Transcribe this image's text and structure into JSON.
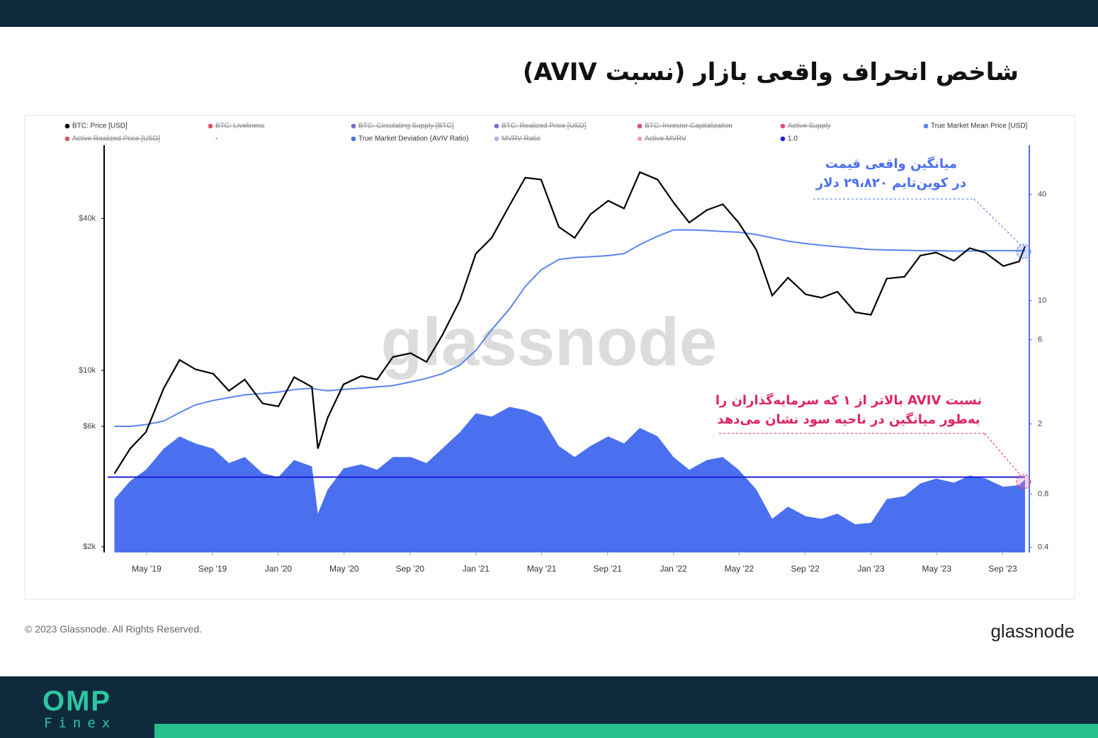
{
  "title": "شاخص انحراف واقعی بازار (نسبت AVIV)",
  "footer": {
    "copyright": "© 2023 Glassnode. All Rights Reserved.",
    "logo": "glassnode"
  },
  "brand": {
    "name": "OMP",
    "sub": "Finex"
  },
  "chart_data": {
    "type": "line",
    "watermark": "glassnode",
    "legend": [
      {
        "name": "BTC: Price [USD]",
        "color": "#000000",
        "struck": false
      },
      {
        "name": "BTC: Liveliness",
        "color": "#e0506a",
        "struck": true
      },
      {
        "name": "BTC: Circulating Supply [BTC]",
        "color": "#7b68d8",
        "struck": true
      },
      {
        "name": "BTC: Realized Price [USD]",
        "color": "#7b68d8",
        "struck": true
      },
      {
        "name": "BTC: Investor Capitalization",
        "color": "#e0506a",
        "struck": true
      },
      {
        "name": "Active Supply",
        "color": "#e0506a",
        "struck": true
      },
      {
        "name": "True Market Mean Price [USD]",
        "color": "#5b84f0",
        "struck": false
      },
      {
        "name": "Active Realized Price [USD]",
        "color": "#e0506a",
        "struck": true
      },
      {
        "name": "-",
        "struck": false
      },
      {
        "name": "True Market Deviation (AVIV Ratio)",
        "color": "#4a70f0",
        "struck": false
      },
      {
        "name": "MVRV Ratio",
        "color": "#b9b0ee",
        "struck": true
      },
      {
        "name": "Active MVRV",
        "color": "#f0a0b8",
        "struck": true
      },
      {
        "name": "1.0",
        "color": "#1f1fd6",
        "struck": false
      }
    ],
    "x": [
      2019.17,
      2019.25,
      2019.33,
      2019.42,
      2019.5,
      2019.58,
      2019.67,
      2019.75,
      2019.83,
      2019.92,
      2020.0,
      2020.08,
      2020.17,
      2020.2,
      2020.25,
      2020.33,
      2020.42,
      2020.5,
      2020.58,
      2020.67,
      2020.75,
      2020.83,
      2020.92,
      2021.0,
      2021.08,
      2021.17,
      2021.25,
      2021.33,
      2021.42,
      2021.5,
      2021.58,
      2021.67,
      2021.75,
      2021.83,
      2021.92,
      2022.0,
      2022.08,
      2022.17,
      2022.25,
      2022.33,
      2022.42,
      2022.5,
      2022.58,
      2022.67,
      2022.75,
      2022.83,
      2022.92,
      2023.0,
      2023.08,
      2023.17,
      2023.25,
      2023.33,
      2023.42,
      2023.5,
      2023.58,
      2023.67,
      2023.75,
      2023.78
    ],
    "series": [
      {
        "type": "area",
        "axis": "y2",
        "color": "#4a70f0",
        "values": [
          0.75,
          0.95,
          1.1,
          1.45,
          1.7,
          1.55,
          1.45,
          1.2,
          1.3,
          1.05,
          1.0,
          1.25,
          1.15,
          0.62,
          0.85,
          1.12,
          1.18,
          1.1,
          1.3,
          1.3,
          1.2,
          1.45,
          1.8,
          2.3,
          2.2,
          2.5,
          2.4,
          2.2,
          1.5,
          1.3,
          1.5,
          1.7,
          1.55,
          1.9,
          1.7,
          1.3,
          1.1,
          1.25,
          1.3,
          1.1,
          0.85,
          0.58,
          0.68,
          0.6,
          0.58,
          0.62,
          0.54,
          0.55,
          0.75,
          0.78,
          0.92,
          0.98,
          0.93,
          1.02,
          0.98,
          0.88,
          0.9,
          0.97
        ]
      },
      {
        "type": "line",
        "axis": "y",
        "color": "#5b84f0",
        "values": [
          6000,
          6000,
          6100,
          6300,
          6800,
          7300,
          7600,
          7800,
          8000,
          8100,
          8200,
          8400,
          8500,
          8400,
          8300,
          8400,
          8500,
          8600,
          8700,
          9000,
          9300,
          9700,
          10500,
          12000,
          14500,
          17500,
          21500,
          25000,
          27500,
          28000,
          28200,
          28500,
          29000,
          31500,
          34000,
          36000,
          36000,
          35800,
          35500,
          35300,
          34500,
          33500,
          32500,
          31800,
          31300,
          30900,
          30500,
          30100,
          30000,
          29900,
          29800,
          29800,
          29700,
          29700,
          29800,
          29800,
          29800,
          29820
        ]
      },
      {
        "type": "line",
        "axis": "y",
        "color": "#000000",
        "values": [
          3900,
          4900,
          5700,
          8500,
          11000,
          10100,
          9700,
          8300,
          9200,
          7400,
          7200,
          9400,
          8600,
          4900,
          6500,
          8800,
          9500,
          9200,
          11300,
          11700,
          10800,
          13800,
          19000,
          29000,
          33500,
          45000,
          58000,
          57000,
          37000,
          33500,
          41500,
          47000,
          43800,
          61000,
          57000,
          46300,
          38500,
          43200,
          45500,
          38500,
          30000,
          19800,
          23300,
          20000,
          19400,
          20500,
          17000,
          16600,
          23100,
          23500,
          28500,
          29300,
          27200,
          30500,
          29200,
          25900,
          27000,
          31000
        ]
      }
    ],
    "reference_line": {
      "value": 1,
      "axis": "y2",
      "color": "#1f1fd6"
    },
    "xlim": [
      2019.136,
      2023.78
    ],
    "xticks": [
      {
        "value": 2019.333,
        "label": "May '19"
      },
      {
        "value": 2019.667,
        "label": "Sep '19"
      },
      {
        "value": 2020.0,
        "label": "Jan '20"
      },
      {
        "value": 2020.333,
        "label": "May '20"
      },
      {
        "value": 2020.667,
        "label": "Sep '20"
      },
      {
        "value": 2021.0,
        "label": "Jan '21"
      },
      {
        "value": 2021.333,
        "label": "May '21"
      },
      {
        "value": 2021.667,
        "label": "Sep '21"
      },
      {
        "value": 2022.0,
        "label": "Jan '22"
      },
      {
        "value": 2022.333,
        "label": "May '22"
      },
      {
        "value": 2022.667,
        "label": "Sep '22"
      },
      {
        "value": 2023.0,
        "label": "Jan '23"
      },
      {
        "value": 2023.333,
        "label": "May '23"
      },
      {
        "value": 2023.667,
        "label": "Sep '23"
      }
    ],
    "ylog": true,
    "ylim": [
      1900,
      78000
    ],
    "yticks": [
      {
        "value": 2000,
        "label": "$2k"
      },
      {
        "value": 6000,
        "label": "$6k"
      },
      {
        "value": 10000,
        "label": "$10k"
      },
      {
        "value": 40000,
        "label": "$40k"
      }
    ],
    "y2log": true,
    "y2lim": [
      0.374,
      76
    ],
    "y2ticks": [
      0.4,
      0.8,
      2,
      6,
      10,
      40
    ],
    "annotations": [
      {
        "lines": [
          "میانگین واقعی قیمت",
          "در کوین‌تایم ۲۹،۸۲۰ دلار"
        ],
        "color": "#4a6ff0"
      },
      {
        "lines": [
          "نسبت AVIV بالاتر از ۱ که سرمایه‌گذاران را",
          "به‌طور میانگین در ناحیه سود نشان می‌دهد"
        ],
        "color": "#e0245e"
      }
    ]
  }
}
